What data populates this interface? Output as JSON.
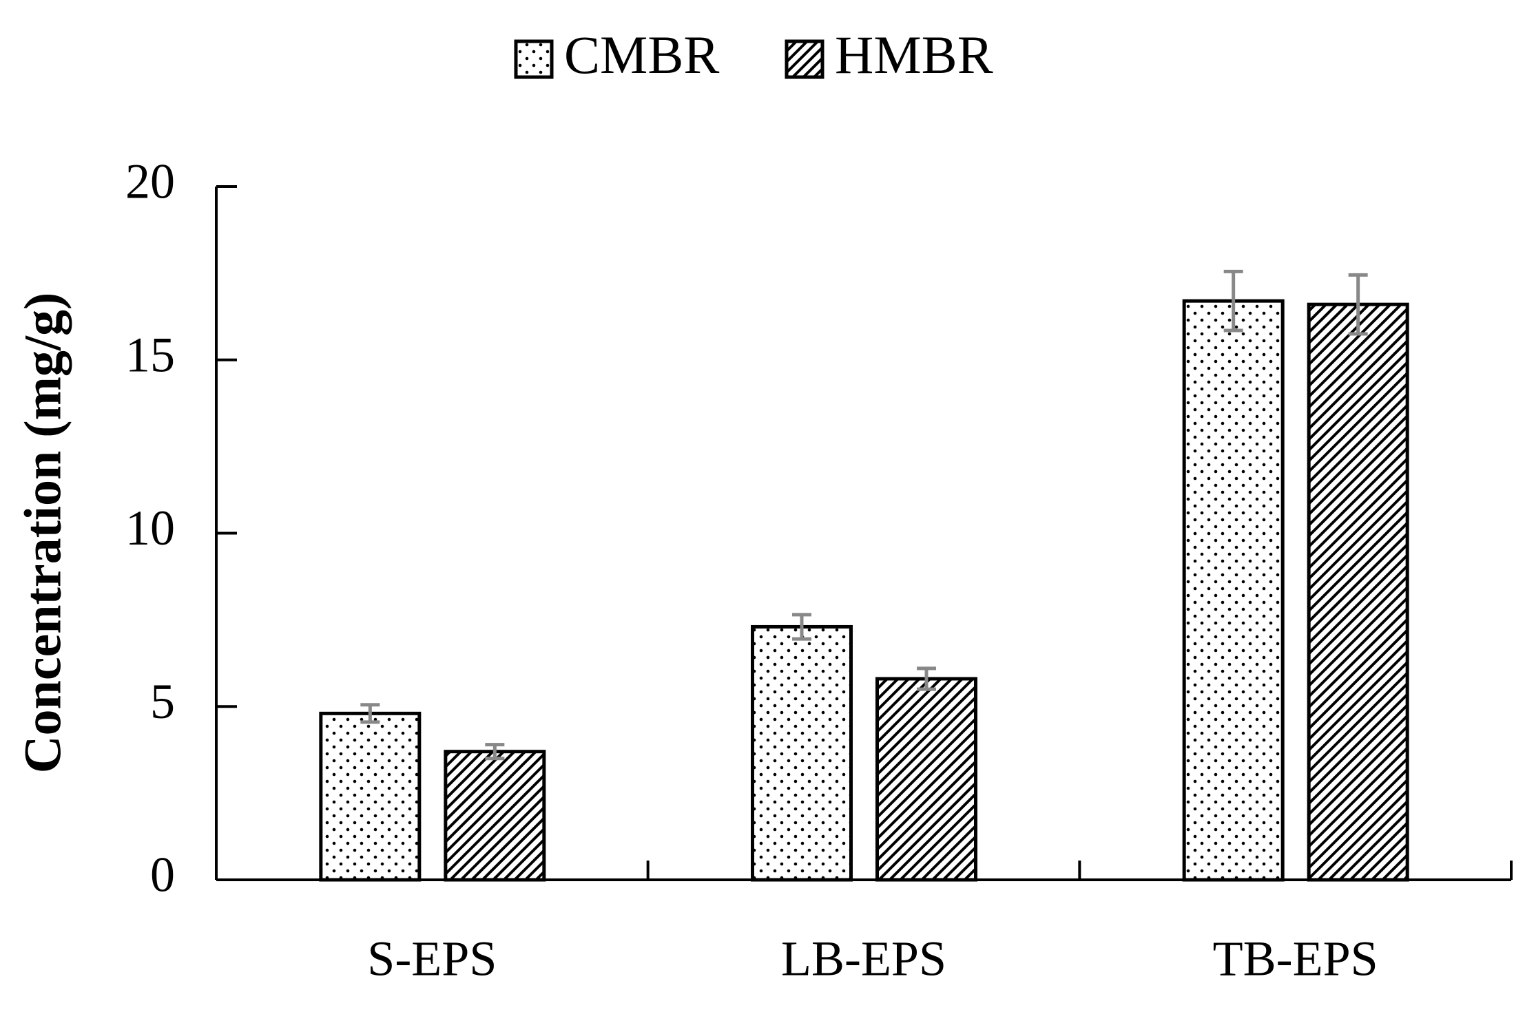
{
  "chart_data": {
    "type": "bar",
    "y_label": "Concentration (mg/g)",
    "categories": [
      "S-EPS",
      "LB-EPS",
      "TB-EPS"
    ],
    "series": [
      {
        "name": "CMBR",
        "color": "#000000",
        "pattern": "dots",
        "values": [
          4.8,
          7.3,
          16.7
        ],
        "errors": [
          0.25,
          0.35,
          0.85
        ]
      },
      {
        "name": "HMBR",
        "color": "#000000",
        "pattern": "hatch",
        "values": [
          3.7,
          5.8,
          16.6
        ],
        "errors": [
          0.2,
          0.3,
          0.85
        ]
      }
    ],
    "error_color": "#888888",
    "ylim": [
      0,
      20
    ],
    "yticks": [
      0,
      5,
      10,
      15,
      20
    ],
    "grid": false,
    "legend": "top"
  }
}
